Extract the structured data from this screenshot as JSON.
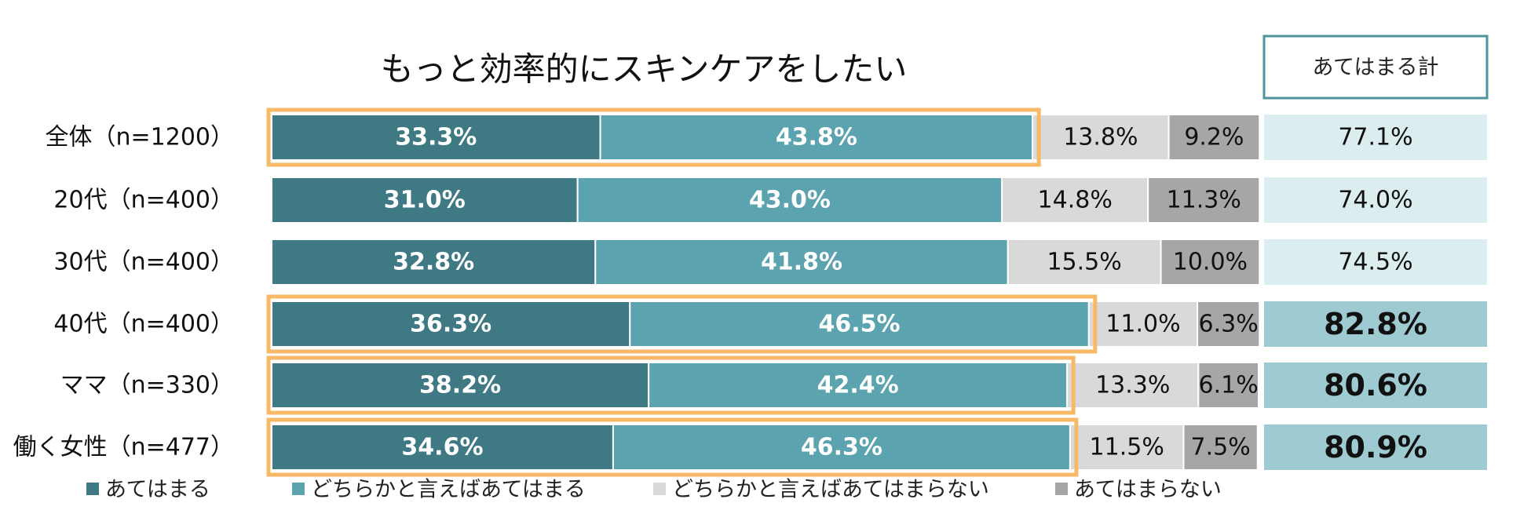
{
  "chart_data": {
    "type": "stacked-bar-horizontal",
    "title": "もっと効率的にスキンケアをしたい",
    "categories": [
      "全体（n=1200）",
      "20代（n=400）",
      "30代（n=400）",
      "40代（n=400）",
      "ママ（n=330）",
      "働く女性（n=477）"
    ],
    "xlim": [
      0,
      100
    ],
    "series": [
      {
        "name": "あてはまる",
        "color": "#3f7a84",
        "values": [
          33.3,
          31.0,
          32.8,
          36.3,
          38.2,
          34.6
        ],
        "value_labels": [
          "33.3%",
          "31.0%",
          "32.8%",
          "36.3%",
          "38.2%",
          "34.6%"
        ]
      },
      {
        "name": "どちらかと言えばあてはまる",
        "color": "#5ba3ae",
        "values": [
          43.8,
          43.0,
          41.8,
          46.5,
          42.4,
          46.3
        ],
        "value_labels": [
          "43.8%",
          "43.0%",
          "41.8%",
          "46.5%",
          "42.4%",
          "46.3%"
        ]
      },
      {
        "name": "どちらかと言えばあてはまらない",
        "color": "#d9d9d9",
        "values": [
          13.8,
          14.8,
          15.5,
          11.0,
          13.3,
          11.5
        ],
        "value_labels": [
          "13.8%",
          "14.8%",
          "15.5%",
          "11.0%",
          "13.3%",
          "11.5%"
        ]
      },
      {
        "name": "あてはまらない",
        "color": "#a6a6a6",
        "values": [
          9.2,
          11.3,
          10.0,
          6.3,
          6.1,
          7.5
        ],
        "value_labels": [
          "9.2%",
          "11.3%",
          "10.0%",
          "6.3%",
          "6.1%",
          "7.5%"
        ]
      }
    ],
    "totals": {
      "title": "あてはまる計",
      "values": [
        77.1,
        74.0,
        74.5,
        82.8,
        80.6,
        80.9
      ],
      "value_labels": [
        "77.1%",
        "74.0%",
        "74.5%",
        "82.8%",
        "80.6%",
        "80.9%"
      ]
    },
    "highlighted": [
      true,
      false,
      false,
      true,
      true,
      true
    ],
    "emphasized": [
      false,
      false,
      false,
      true,
      true,
      true
    ],
    "highlight_color": "#f8b966"
  }
}
